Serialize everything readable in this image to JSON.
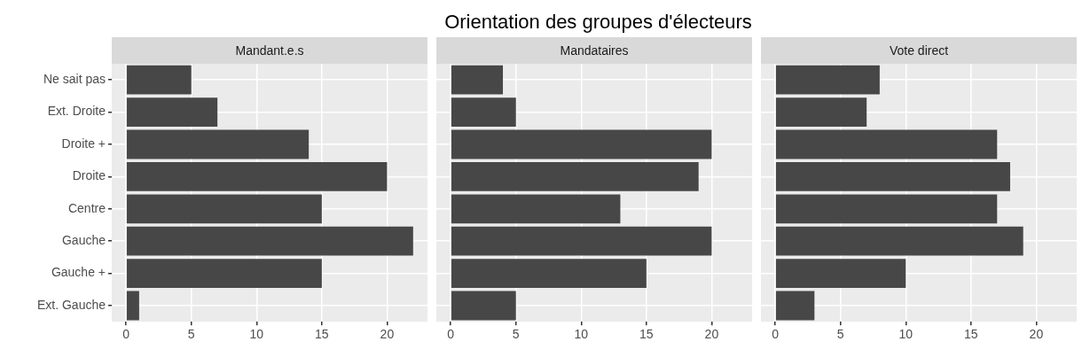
{
  "chart_data": [
    {
      "type": "other",
      "title": "Orientation des groupes d'électeurs"
    },
    {
      "type": "bar",
      "orientation": "horizontal",
      "subtitle": "Mandant.e.s",
      "categories": [
        "Ne sait pas",
        "Ext. Droite",
        "Droite +",
        "Droite",
        "Centre",
        "Gauche",
        "Gauche +",
        "Ext. Gauche"
      ],
      "values": [
        5,
        7,
        14,
        20,
        15,
        22,
        15,
        1
      ],
      "color": "#474747",
      "xlim": [
        -1.1,
        23.1
      ],
      "xticks": [
        0,
        5,
        10,
        15,
        20
      ],
      "grid": true,
      "legend": false
    },
    {
      "type": "bar",
      "orientation": "horizontal",
      "subtitle": "Mandataires",
      "categories": [
        null,
        null,
        null,
        null,
        null,
        null,
        null,
        null
      ],
      "values": [
        4,
        5,
        20,
        19,
        13,
        20,
        15,
        5
      ],
      "color": "#474747",
      "xlim": [
        -1.1,
        23.1
      ],
      "xticks": [
        0,
        5,
        10,
        15,
        20
      ],
      "grid": true,
      "legend": false,
      "tick_labels": "x"
    },
    {
      "type": "bar",
      "orientation": "horizontal",
      "subtitle": "Vote direct",
      "categories": [
        null,
        null,
        null,
        null,
        null,
        null,
        null,
        null
      ],
      "values": [
        8,
        7,
        17,
        18,
        17,
        19,
        10,
        3
      ],
      "color": "#474747",
      "xlim": [
        -1.1,
        23.1
      ],
      "xticks": [
        0,
        5,
        10,
        15,
        20
      ],
      "grid": true,
      "legend": false,
      "tick_labels": "x"
    }
  ]
}
